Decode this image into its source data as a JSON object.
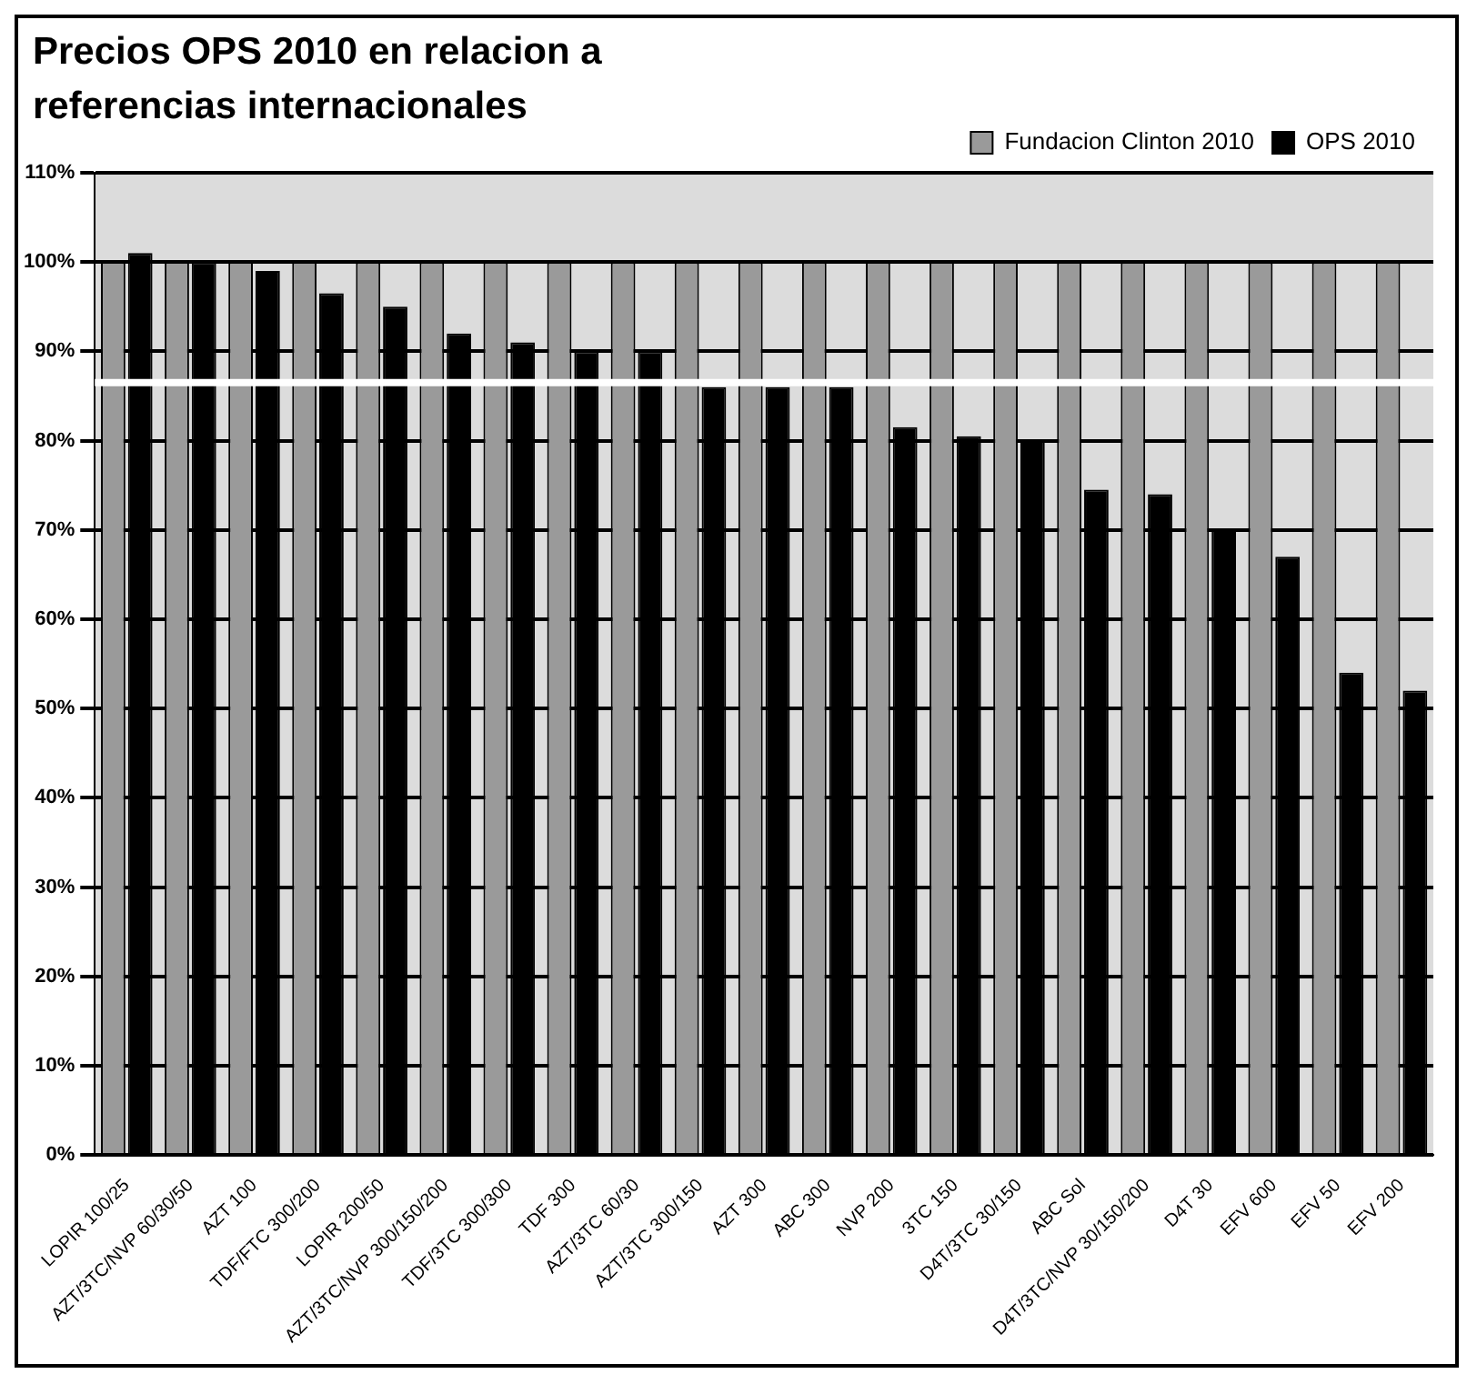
{
  "chart_data": {
    "type": "bar",
    "title": "Precios OPS 2010 en relacion a referencias internacionales",
    "categories": [
      "LOPIR 100/25",
      "AZT/3TC/NVP 60/30/50",
      "AZT 100",
      "TDF/FTC 300/200",
      "LOPIR 200/50",
      "AZT/3TC/NVP 300/150/200",
      "TDF/3TC 300/300",
      "TDF 300",
      "AZT/3TC 60/30",
      "AZT/3TC 300/150",
      "AZT 300",
      "ABC 300",
      "NVP 200",
      "3TC 150",
      "D4T/3TC 30/150",
      "ABC Sol",
      "D4T/3TC/NVP 30/150/200",
      "D4T 30",
      "EFV 600",
      "EFV 50",
      "EFV 200"
    ],
    "series": [
      {
        "name": "Fundacion Clinton 2010",
        "color": "#9a9a9a",
        "values": [
          100,
          100,
          100,
          100,
          100,
          100,
          100,
          100,
          100,
          100,
          100,
          100,
          100,
          100,
          100,
          100,
          100,
          100,
          100,
          100,
          100
        ]
      },
      {
        "name": "OPS 2010",
        "color": "#000000",
        "values": [
          101,
          100,
          99,
          96.5,
          95,
          92,
          91,
          90,
          90,
          86,
          86,
          86,
          81.5,
          80.5,
          80,
          74.5,
          74,
          70,
          67,
          54,
          52
        ]
      }
    ],
    "ylim": [
      0,
      110
    ],
    "yticks": [
      {
        "value": 0,
        "label": "0%"
      },
      {
        "value": 10,
        "label": "10%"
      },
      {
        "value": 20,
        "label": "20%"
      },
      {
        "value": 30,
        "label": "30%"
      },
      {
        "value": 40,
        "label": "40%"
      },
      {
        "value": 50,
        "label": "50%"
      },
      {
        "value": 60,
        "label": "60%"
      },
      {
        "value": 70,
        "label": "70%"
      },
      {
        "value": 80,
        "label": "80%"
      },
      {
        "value": 90,
        "label": "90%"
      },
      {
        "value": 100,
        "label": "100%"
      },
      {
        "value": 110,
        "label": "110%"
      }
    ],
    "ref_lines": [
      {
        "axis": "y",
        "value": 86.5,
        "color": "#ffffff"
      }
    ],
    "grid": "y",
    "legend": "top right"
  }
}
